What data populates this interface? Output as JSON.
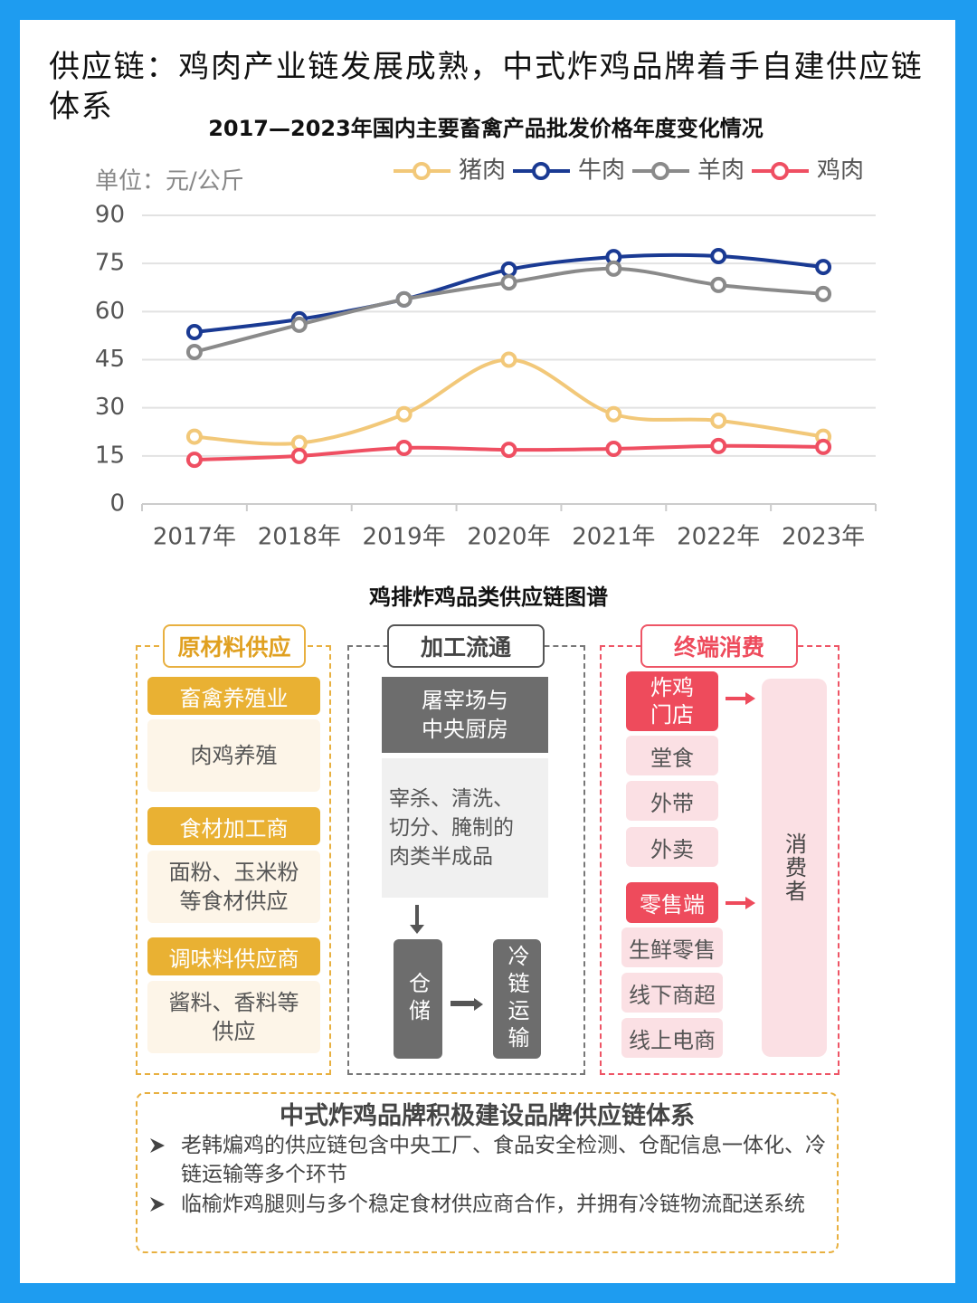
{
  "header": {
    "title": "供应链：鸡肉产业链发展成熟，中式炸鸡品牌着手自建供应链体系"
  },
  "chart_data": {
    "type": "line",
    "title": "2017—2023年国内主要畜禽产品批发价格年度变化情况",
    "y_unit": "单位：元/公斤",
    "categories": [
      "2017年",
      "2018年",
      "2019年",
      "2020年",
      "2021年",
      "2022年",
      "2023年"
    ],
    "series": [
      {
        "name": "猪肉",
        "color": "#f2c879",
        "values": [
          21,
          19,
          28,
          45,
          28,
          26,
          21
        ]
      },
      {
        "name": "牛肉",
        "color": "#1a3a93",
        "values": [
          53.6,
          57.6,
          63.8,
          73.1,
          77,
          77.3,
          73.9
        ]
      },
      {
        "name": "羊肉",
        "color": "#8a8a8a",
        "values": [
          47.4,
          55.9,
          63.8,
          69.1,
          73.4,
          68.3,
          65.5
        ]
      },
      {
        "name": "鸡肉",
        "color": "#ef4f62",
        "values": [
          13.8,
          15,
          17.5,
          16.9,
          17.2,
          18.1,
          17.8
        ]
      }
    ],
    "ylim": [
      0,
      90
    ],
    "yticks": [
      0,
      15,
      30,
      45,
      60,
      75,
      90
    ],
    "grid": true,
    "legend": "top-right"
  },
  "diagram": {
    "title": "鸡排炸鸡品类供应链图谱",
    "raw": {
      "header": "原材料供应",
      "groups": [
        {
          "label": "畜禽养殖业",
          "detail": "肉鸡养殖"
        },
        {
          "label": "食材加工商",
          "detail": "面粉、玉米粉\n等食材供应"
        },
        {
          "label": "调味料供应商",
          "detail": "酱料、香料等\n供应"
        }
      ]
    },
    "process": {
      "header": "加工流通",
      "node": "屠宰场与\n中央厨房",
      "detail": "宰杀、清洗、\n切分、腌制的\n肉类半成品",
      "storage": "仓储",
      "transport": "冷链运输"
    },
    "consumer": {
      "header": "终端消费",
      "store": "炸鸡\n门店",
      "store_items": [
        "堂食",
        "外带",
        "外卖"
      ],
      "retail": "零售端",
      "retail_items": [
        "生鲜零售",
        "线下商超",
        "线上电商"
      ],
      "end": "消费者"
    }
  },
  "summary": {
    "title": "中式炸鸡品牌积极建设品牌供应链体系",
    "bullets": [
      "老韩煸鸡的供应链包含中央工厂、食品安全检测、仓配信息一体化、冷链运输等多个环节",
      "临榆炸鸡腿则与多个稳定食材供应商合作，并拥有冷链物流配送系统"
    ]
  }
}
